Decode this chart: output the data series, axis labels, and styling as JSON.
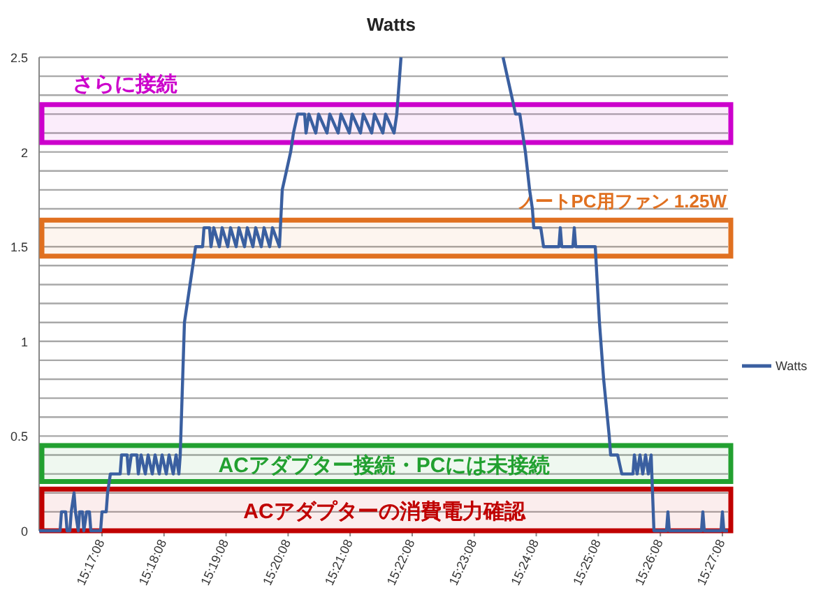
{
  "chart_data": {
    "type": "line",
    "title": "Watts",
    "legend": "right",
    "grid": "y",
    "marker": "none",
    "line_style": "solid",
    "xlim": [
      15.26867,
      15.45373
    ],
    "ylim": [
      0,
      2.5
    ],
    "xticks": [
      {
        "value": 15.28556,
        "label": "15:17:08"
      },
      {
        "value": 15.30222,
        "label": "15:18:08"
      },
      {
        "value": 15.31889,
        "label": "15:19:08"
      },
      {
        "value": 15.33556,
        "label": "15:20:08"
      },
      {
        "value": 15.35222,
        "label": "15:21:08"
      },
      {
        "value": 15.36889,
        "label": "15:22:08"
      },
      {
        "value": 15.38556,
        "label": "15:23:08"
      },
      {
        "value": 15.40222,
        "label": "15:24:08"
      },
      {
        "value": 15.41889,
        "label": "15:25:08"
      },
      {
        "value": 15.43556,
        "label": "15:26:08"
      },
      {
        "value": 15.45222,
        "label": "15:27:08"
      }
    ],
    "yticks": [
      0,
      {
        "value": 0.1,
        "label": null
      },
      {
        "value": 0.2,
        "label": null
      },
      {
        "value": 0.3,
        "label": null
      },
      {
        "value": 0.4,
        "label": null
      },
      0.5,
      {
        "value": 0.6,
        "label": null
      },
      {
        "value": 0.7,
        "label": null
      },
      {
        "value": 0.8,
        "label": null
      },
      {
        "value": 0.9,
        "label": null
      },
      1,
      {
        "value": 1.1,
        "label": null
      },
      {
        "value": 1.2,
        "label": null
      },
      {
        "value": 1.3,
        "label": null
      },
      {
        "value": 1.4,
        "label": null
      },
      1.5,
      {
        "value": 1.6,
        "label": null
      },
      {
        "value": 1.7,
        "label": null
      },
      {
        "value": 1.8,
        "label": null
      },
      {
        "value": 1.9,
        "label": null
      },
      2,
      {
        "value": 2.1,
        "label": null
      },
      {
        "value": 2.2,
        "label": null
      },
      {
        "value": 2.3,
        "label": null
      },
      {
        "value": 2.4,
        "label": null
      },
      2.5
    ],
    "bands": [
      {
        "axis": "y",
        "from": 2.05,
        "to": 2.25,
        "label": "さらに接続",
        "color": "#cc00cc"
      },
      {
        "axis": "y",
        "from": 1.45,
        "to": 1.64,
        "label": "ノートPC用ファン 1.25W",
        "color": "#e07020"
      },
      {
        "axis": "y",
        "from": 0.26,
        "to": 0.45,
        "label": "ACアダプター接続・PCには未接続",
        "color": "#22a030"
      },
      {
        "axis": "y",
        "from": 0,
        "to": 0.22,
        "label": "ACアダプターの消費電力確認",
        "color": "#c00000"
      }
    ],
    "series": [
      {
        "name": "Watts",
        "color": "#3a5fa0",
        "x": [
          15.26867,
          15.2743,
          15.27467,
          15.2758,
          15.27618,
          15.27693,
          15.2773,
          15.27805,
          15.27843,
          15.27918,
          15.27955,
          15.28031,
          15.28068,
          15.28143,
          15.28218,
          15.28256,
          15.28518,
          15.28556,
          15.28669,
          15.28706,
          15.28781,
          15.29044,
          15.29081,
          15.29232,
          15.29269,
          15.29344,
          15.29494,
          15.29532,
          15.29607,
          15.2972,
          15.29795,
          15.29907,
          15.29982,
          15.30095,
          15.3017,
          15.30283,
          15.30358,
          15.3047,
          15.30546,
          15.30621,
          15.30658,
          15.30771,
          15.30846,
          15.30921,
          15.30996,
          15.31071,
          15.31259,
          15.31296,
          15.31446,
          15.31484,
          15.31559,
          15.31709,
          15.31784,
          15.31934,
          15.3201,
          15.3216,
          15.32235,
          15.32385,
          15.3246,
          15.3261,
          15.32685,
          15.32835,
          15.3291,
          15.33061,
          15.33136,
          15.33323,
          15.33398,
          15.33511,
          15.33624,
          15.33699,
          15.33811,
          15.33999,
          15.34037,
          15.34112,
          15.34299,
          15.34374,
          15.346,
          15.34675,
          15.349,
          15.34975,
          15.352,
          15.35275,
          15.355,
          15.35576,
          15.35801,
          15.35876,
          15.36101,
          15.36176,
          15.36401,
          15.36476,
          15.36589
        ],
        "values": [
          0,
          0,
          0.1,
          0.1,
          0,
          0,
          0.1,
          0.2,
          0.1,
          0,
          0.1,
          0.1,
          0,
          0.1,
          0.1,
          0,
          0,
          0.1,
          0.1,
          0.2,
          0.3,
          0.3,
          0.4,
          0.4,
          0.3,
          0.4,
          0.4,
          0.3,
          0.4,
          0.3,
          0.4,
          0.3,
          0.4,
          0.3,
          0.4,
          0.3,
          0.4,
          0.3,
          0.4,
          0.3,
          0.4,
          1.1,
          1.2,
          1.3,
          1.4,
          1.5,
          1.5,
          1.6,
          1.6,
          1.5,
          1.6,
          1.5,
          1.6,
          1.5,
          1.6,
          1.5,
          1.6,
          1.5,
          1.6,
          1.5,
          1.6,
          1.5,
          1.6,
          1.5,
          1.6,
          1.5,
          1.8,
          1.9,
          2,
          2.1,
          2.2,
          2.2,
          2.1,
          2.2,
          2.1,
          2.2,
          2.1,
          2.2,
          2.1,
          2.2,
          2.1,
          2.2,
          2.1,
          2.2,
          2.1,
          2.2,
          2.1,
          2.2,
          2.1,
          2.2,
          2.5
        ]
      },
      {
        "color": "#3a5fa0",
        "x": [
          15.39329,
          15.39555,
          15.39667,
          15.3978,
          15.3993,
          15.40043,
          15.40118,
          15.40155,
          15.40343,
          15.40418,
          15.40831,
          15.40868,
          15.40906,
          15.41206,
          15.41244,
          15.41281,
          15.41807,
          15.41919,
          15.42032,
          15.42182,
          15.4222,
          15.42407,
          15.4252,
          15.4282,
          15.42858,
          15.42933,
          15.43008,
          15.43083,
          15.43158,
          15.43233,
          15.43308,
          15.43383,
          15.43721,
          15.43759,
          15.43796,
          15.4466,
          15.44697,
          15.44735,
          15.45185,
          15.45223,
          15.4526,
          15.45373
        ],
        "values": [
          2.5,
          2.3,
          2.2,
          2.2,
          2,
          1.8,
          1.7,
          1.6,
          1.6,
          1.5,
          1.5,
          1.6,
          1.5,
          1.5,
          1.6,
          1.5,
          1.5,
          1.1,
          0.8,
          0.5,
          0.4,
          0.4,
          0.3,
          0.3,
          0.4,
          0.3,
          0.4,
          0.3,
          0.4,
          0.3,
          0.4,
          0,
          0,
          0.1,
          0,
          0,
          0.1,
          0,
          0,
          0.1,
          0,
          0
        ]
      }
    ]
  }
}
